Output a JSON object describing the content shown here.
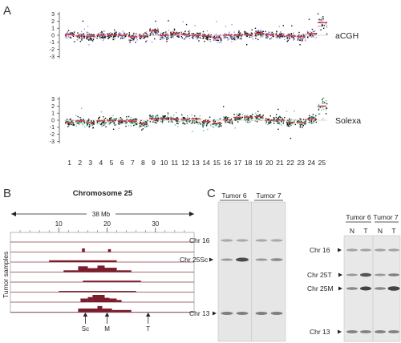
{
  "panels": {
    "a": {
      "letter": "A",
      "track_labels": [
        "aCGH",
        "Solexa"
      ],
      "y_ticks": [
        "3",
        "2",
        "1",
        "0",
        "-1",
        "-2",
        "-3"
      ],
      "chromosomes": [
        "1",
        "2",
        "3",
        "4",
        "5",
        "6",
        "7",
        "8",
        "9",
        "10",
        "11",
        "12",
        "13",
        "14",
        "15",
        "16",
        "17",
        "18",
        "19",
        "20",
        "21",
        "22",
        "23",
        "24",
        "25"
      ],
      "colors": {
        "point_dark": "#111111",
        "acgh_point": "#9c93d9",
        "solexa_point": "#5fc2a8",
        "segment": "#d23a3a"
      }
    },
    "b": {
      "letter": "B",
      "title": "Chromosome 25",
      "span_label": "38 Mb",
      "axis_ticks": [
        "10",
        "20",
        "30"
      ],
      "ylabel": "Tumor samples",
      "markers": [
        "Sc",
        "M",
        "T"
      ],
      "bar_color": "#7a1d2c"
    },
    "c": {
      "letter": "C",
      "gel1": {
        "tumors": [
          "Tumor 6",
          "Tumor 7"
        ],
        "lanes": [
          "N",
          "T",
          "N",
          "T"
        ],
        "bands": [
          "Chr 16",
          "Chr 25Sc",
          "Chr 13"
        ]
      },
      "gel2": {
        "tumors": [
          "Tumor 6",
          "Tumor 7"
        ],
        "lanes": [
          "N",
          "T",
          "N",
          "T"
        ],
        "bands": [
          "Chr 16",
          "Chr 25T",
          "Chr 25M",
          "Chr 13"
        ]
      }
    }
  },
  "chart_data": [
    {
      "type": "scatter",
      "title": "aCGH",
      "xlabel": "",
      "ylabel": "",
      "categories": [
        "1",
        "2",
        "3",
        "4",
        "5",
        "6",
        "7",
        "8",
        "9",
        "10",
        "11",
        "12",
        "13",
        "14",
        "15",
        "16",
        "17",
        "18",
        "19",
        "20",
        "21",
        "22",
        "23",
        "24",
        "25"
      ],
      "ylim": [
        -3.5,
        3.5
      ],
      "segment_means": [
        0.1,
        -0.1,
        -0.15,
        0.0,
        0.05,
        0.0,
        -0.2,
        -0.1,
        0.6,
        0.0,
        0.3,
        0.1,
        0.0,
        -0.1,
        -0.35,
        0.0,
        0.0,
        0.1,
        0.3,
        0.1,
        0.0,
        -0.1,
        -0.2,
        0.25,
        1.8
      ]
    },
    {
      "type": "scatter",
      "title": "Solexa",
      "xlabel": "",
      "ylabel": "",
      "categories": [
        "1",
        "2",
        "3",
        "4",
        "5",
        "6",
        "7",
        "8",
        "9",
        "10",
        "11",
        "12",
        "13",
        "14",
        "15",
        "16",
        "17",
        "18",
        "19",
        "20",
        "21",
        "22",
        "23",
        "24",
        "25"
      ],
      "ylim": [
        -3.5,
        3.5
      ],
      "segment_means": [
        -0.3,
        -0.1,
        -0.35,
        -0.1,
        -0.05,
        -0.1,
        -0.15,
        -0.5,
        0.25,
        0.3,
        0.2,
        0.15,
        0.2,
        -0.2,
        -0.45,
        0.05,
        0.4,
        0.4,
        0.5,
        0.0,
        0.0,
        -0.3,
        -0.3,
        0.2,
        2.0
      ]
    },
    {
      "type": "bar",
      "title": "Chromosome 25",
      "xlabel": "38 Mb",
      "ylabel": "Tumor samples",
      "xlim": [
        0,
        38
      ],
      "x_ticks": [
        10,
        20,
        30
      ],
      "markers": [
        {
          "name": "Sc",
          "x": 15.5
        },
        {
          "name": "M",
          "x": 20.0
        },
        {
          "name": "T",
          "x": 28.5
        }
      ],
      "tracks": [
        {
          "sample": 1,
          "segments": []
        },
        {
          "sample": 2,
          "segments": [
            [
              14.8,
              15.4,
              0.5
            ],
            [
              20.2,
              20.8,
              0.4
            ]
          ]
        },
        {
          "sample": 3,
          "segments": [
            [
              8,
              22,
              0.25
            ]
          ]
        },
        {
          "sample": 4,
          "segments": [
            [
              11,
              14,
              0.25
            ],
            [
              14,
              16,
              0.8
            ],
            [
              16,
              18,
              0.55
            ],
            [
              18,
              19.5,
              0.9
            ],
            [
              19.5,
              22,
              0.6
            ],
            [
              22,
              25,
              0.25
            ]
          ]
        },
        {
          "sample": 5,
          "segments": [
            [
              15,
              27,
              0.2
            ]
          ]
        },
        {
          "sample": 6,
          "segments": [
            [
              10,
              18,
              0.15
            ],
            [
              18,
              26,
              0.15
            ]
          ]
        },
        {
          "sample": 7,
          "segments": [
            [
              14.5,
              16,
              0.5
            ],
            [
              16,
              17,
              0.7
            ],
            [
              17,
              19.5,
              1.0
            ],
            [
              19.5,
              20.5,
              0.6
            ],
            [
              20.5,
              22,
              0.5
            ],
            [
              22,
              23,
              0.3
            ]
          ]
        },
        {
          "sample": 8,
          "segments": [
            [
              14,
              18,
              0.5
            ],
            [
              18,
              19,
              0.85
            ],
            [
              19,
              21,
              0.5
            ],
            [
              21,
              25,
              0.3
            ]
          ]
        }
      ]
    }
  ]
}
